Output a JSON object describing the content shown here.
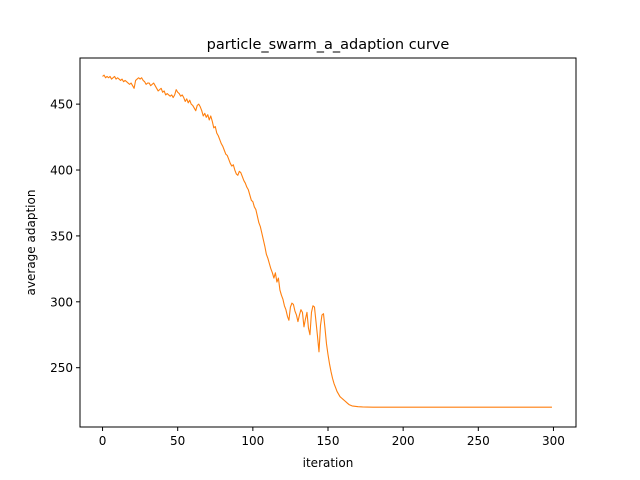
{
  "chart_data": {
    "type": "line",
    "title": "particle_swarm_a_adaption curve",
    "xlabel": "iteration",
    "ylabel": "average adaption",
    "xlim": [
      -15,
      315
    ],
    "ylim": [
      205,
      485
    ],
    "xticks": [
      0,
      50,
      100,
      150,
      200,
      250,
      300
    ],
    "yticks": [
      250,
      300,
      350,
      400,
      450
    ],
    "grid": false,
    "colors": {
      "line": "#ff7f0e",
      "axes": "#000000",
      "background": "#ffffff"
    },
    "series": [
      {
        "points": [
          [
            0,
            471
          ],
          [
            1,
            472
          ],
          [
            2,
            470
          ],
          [
            3,
            471
          ],
          [
            4,
            470
          ],
          [
            5,
            471
          ],
          [
            6,
            469
          ],
          [
            7,
            470
          ],
          [
            8,
            471
          ],
          [
            9,
            469
          ],
          [
            10,
            470
          ],
          [
            11,
            469
          ],
          [
            12,
            468
          ],
          [
            13,
            469
          ],
          [
            14,
            467
          ],
          [
            15,
            468
          ],
          [
            16,
            467
          ],
          [
            17,
            466
          ],
          [
            18,
            465
          ],
          [
            19,
            466
          ],
          [
            20,
            464
          ],
          [
            21,
            462
          ],
          [
            22,
            468
          ],
          [
            23,
            469
          ],
          [
            24,
            470
          ],
          [
            25,
            469
          ],
          [
            26,
            470
          ],
          [
            27,
            468
          ],
          [
            28,
            467
          ],
          [
            29,
            465
          ],
          [
            30,
            466
          ],
          [
            31,
            466
          ],
          [
            32,
            464
          ],
          [
            33,
            465
          ],
          [
            34,
            466
          ],
          [
            35,
            464
          ],
          [
            36,
            462
          ],
          [
            37,
            460
          ],
          [
            38,
            461
          ],
          [
            39,
            462
          ],
          [
            40,
            459
          ],
          [
            41,
            460
          ],
          [
            42,
            457
          ],
          [
            43,
            458
          ],
          [
            44,
            457
          ],
          [
            45,
            456
          ],
          [
            46,
            457
          ],
          [
            47,
            455
          ],
          [
            48,
            457
          ],
          [
            49,
            461
          ],
          [
            50,
            459
          ],
          [
            51,
            458
          ],
          [
            52,
            456
          ],
          [
            53,
            457
          ],
          [
            54,
            455
          ],
          [
            55,
            452
          ],
          [
            56,
            454
          ],
          [
            57,
            451
          ],
          [
            58,
            453
          ],
          [
            59,
            450
          ],
          [
            60,
            449
          ],
          [
            61,
            447
          ],
          [
            62,
            445
          ],
          [
            63,
            449
          ],
          [
            64,
            450
          ],
          [
            65,
            448
          ],
          [
            66,
            445
          ],
          [
            67,
            441
          ],
          [
            68,
            443
          ],
          [
            69,
            440
          ],
          [
            70,
            442
          ],
          [
            71,
            438
          ],
          [
            72,
            441
          ],
          [
            73,
            437
          ],
          [
            74,
            432
          ],
          [
            75,
            433
          ],
          [
            76,
            428
          ],
          [
            77,
            426
          ],
          [
            78,
            423
          ],
          [
            79,
            420
          ],
          [
            80,
            418
          ],
          [
            81,
            415
          ],
          [
            82,
            412
          ],
          [
            83,
            411
          ],
          [
            84,
            408
          ],
          [
            85,
            405
          ],
          [
            86,
            403
          ],
          [
            87,
            404
          ],
          [
            88,
            400
          ],
          [
            89,
            397
          ],
          [
            90,
            396
          ],
          [
            91,
            399
          ],
          [
            92,
            398
          ],
          [
            93,
            395
          ],
          [
            94,
            392
          ],
          [
            95,
            390
          ],
          [
            96,
            387
          ],
          [
            97,
            385
          ],
          [
            98,
            381
          ],
          [
            99,
            377
          ],
          [
            100,
            376
          ],
          [
            101,
            372
          ],
          [
            102,
            370
          ],
          [
            103,
            365
          ],
          [
            104,
            360
          ],
          [
            105,
            357
          ],
          [
            106,
            352
          ],
          [
            107,
            347
          ],
          [
            108,
            342
          ],
          [
            109,
            336
          ],
          [
            110,
            333
          ],
          [
            111,
            329
          ],
          [
            112,
            325
          ],
          [
            113,
            322
          ],
          [
            114,
            318
          ],
          [
            115,
            322
          ],
          [
            116,
            315
          ],
          [
            117,
            318
          ],
          [
            118,
            309
          ],
          [
            119,
            305
          ],
          [
            120,
            302
          ],
          [
            121,
            297
          ],
          [
            122,
            294
          ],
          [
            123,
            289
          ],
          [
            124,
            286
          ],
          [
            125,
            296
          ],
          [
            126,
            299
          ],
          [
            127,
            298
          ],
          [
            128,
            293
          ],
          [
            129,
            290
          ],
          [
            130,
            285
          ],
          [
            131,
            290
          ],
          [
            132,
            294
          ],
          [
            133,
            292
          ],
          [
            134,
            281
          ],
          [
            135,
            287
          ],
          [
            136,
            292
          ],
          [
            137,
            280
          ],
          [
            138,
            275
          ],
          [
            139,
            292
          ],
          [
            140,
            297
          ],
          [
            141,
            296
          ],
          [
            142,
            285
          ],
          [
            143,
            274
          ],
          [
            144,
            262
          ],
          [
            145,
            282
          ],
          [
            146,
            290
          ],
          [
            147,
            291
          ],
          [
            148,
            280
          ],
          [
            149,
            268
          ],
          [
            150,
            260
          ],
          [
            151,
            253
          ],
          [
            152,
            247
          ],
          [
            153,
            242
          ],
          [
            154,
            238
          ],
          [
            155,
            235
          ],
          [
            156,
            232
          ],
          [
            157,
            230
          ],
          [
            158,
            228
          ],
          [
            159,
            227
          ],
          [
            160,
            226
          ],
          [
            161,
            225
          ],
          [
            162,
            224
          ],
          [
            163,
            223
          ],
          [
            164,
            222
          ],
          [
            165,
            221.5
          ],
          [
            166,
            221
          ],
          [
            168,
            220.7
          ],
          [
            170,
            220.4
          ],
          [
            173,
            220.2
          ],
          [
            176,
            220.1
          ],
          [
            180,
            220
          ],
          [
            190,
            220
          ],
          [
            200,
            220
          ],
          [
            220,
            220
          ],
          [
            240,
            220
          ],
          [
            260,
            220
          ],
          [
            280,
            220
          ],
          [
            299,
            220
          ]
        ]
      }
    ]
  }
}
